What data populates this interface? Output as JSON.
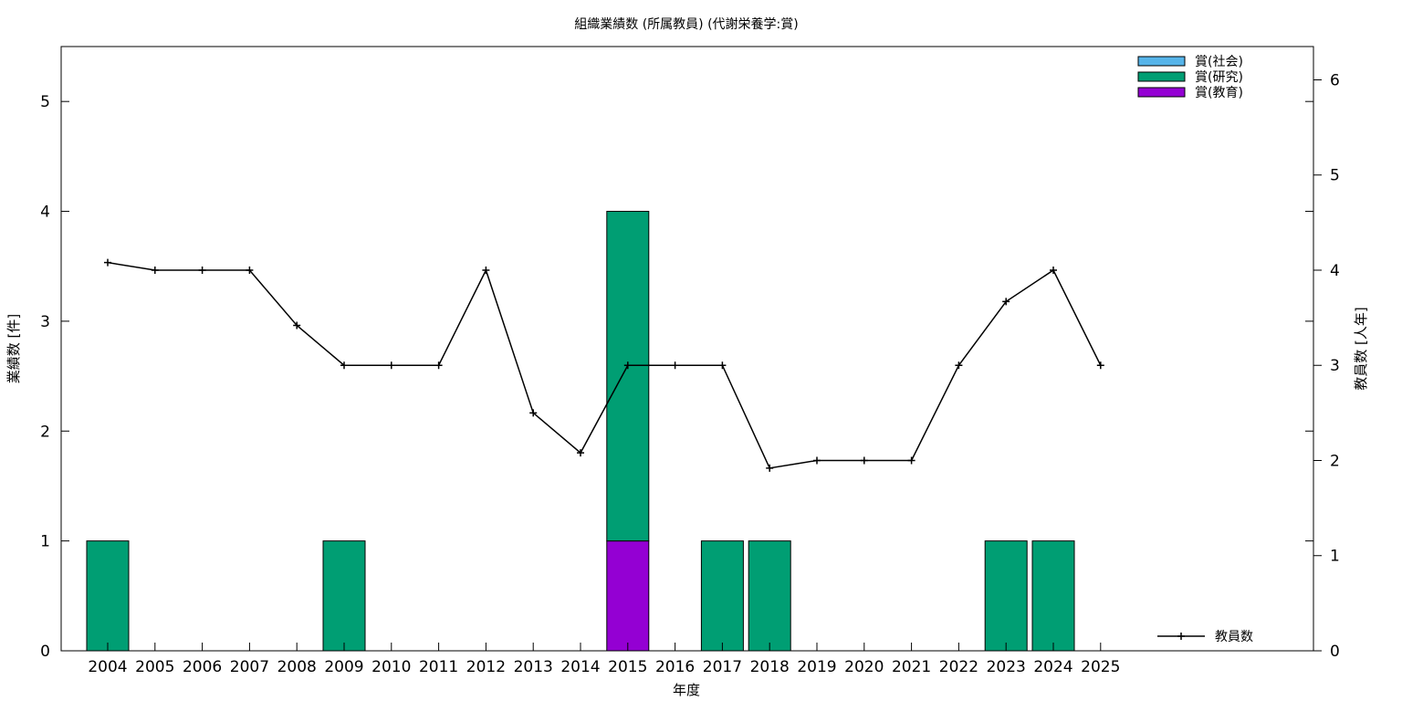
{
  "chart_data": {
    "type": "bar",
    "title": "組織業績数 (所属教員) (代謝栄養学:賞)",
    "xlabel": "年度",
    "ylabel": "業績数 [件]",
    "y2label": "教員数 [人年]",
    "categories": [
      "2004",
      "2005",
      "2006",
      "2007",
      "2008",
      "2009",
      "2010",
      "2011",
      "2012",
      "2013",
      "2014",
      "2015",
      "2016",
      "2017",
      "2018",
      "2019",
      "2020",
      "2021",
      "2022",
      "2023",
      "2024",
      "2025"
    ],
    "ylim": [
      0,
      5.5
    ],
    "yticks": [
      "0",
      "1",
      "2",
      "3",
      "4",
      "5"
    ],
    "y2lim": [
      0,
      6.35
    ],
    "y2ticks": [
      "0",
      "1",
      "2",
      "3",
      "4",
      "5",
      "6"
    ],
    "stacked": true,
    "series": [
      {
        "name": "賞(教育)",
        "color": "#9400d3",
        "values": [
          0,
          0,
          0,
          0,
          0,
          0,
          0,
          0,
          0,
          0,
          0,
          1,
          0,
          0,
          0,
          0,
          0,
          0,
          0,
          0,
          0,
          0
        ]
      },
      {
        "name": "賞(研究)",
        "color": "#009e73",
        "values": [
          1,
          0,
          0,
          0,
          0,
          1,
          0,
          0,
          0,
          0,
          0,
          3,
          0,
          1,
          1,
          0,
          0,
          0,
          0,
          1,
          1,
          0
        ]
      },
      {
        "name": "賞(社会)",
        "color": "#56b4e9",
        "values": [
          0,
          0,
          0,
          0,
          0,
          0,
          0,
          0,
          0,
          0,
          0,
          0,
          0,
          0,
          0,
          0,
          0,
          0,
          0,
          0,
          0,
          0
        ]
      }
    ],
    "legend_order": [
      "賞(社会)",
      "賞(研究)",
      "賞(教育)"
    ],
    "legend_position": "top-right",
    "line_series": {
      "name": "教員数",
      "axis": "y2",
      "color": "#000000",
      "legend_position": "bottom-right",
      "values": [
        4.08,
        4.0,
        4.0,
        4.0,
        3.42,
        3.0,
        3.0,
        3.0,
        4.0,
        2.5,
        2.08,
        3.0,
        3.0,
        3.0,
        1.92,
        2.0,
        2.0,
        2.0,
        3.0,
        3.67,
        4.0,
        3.0
      ]
    }
  }
}
